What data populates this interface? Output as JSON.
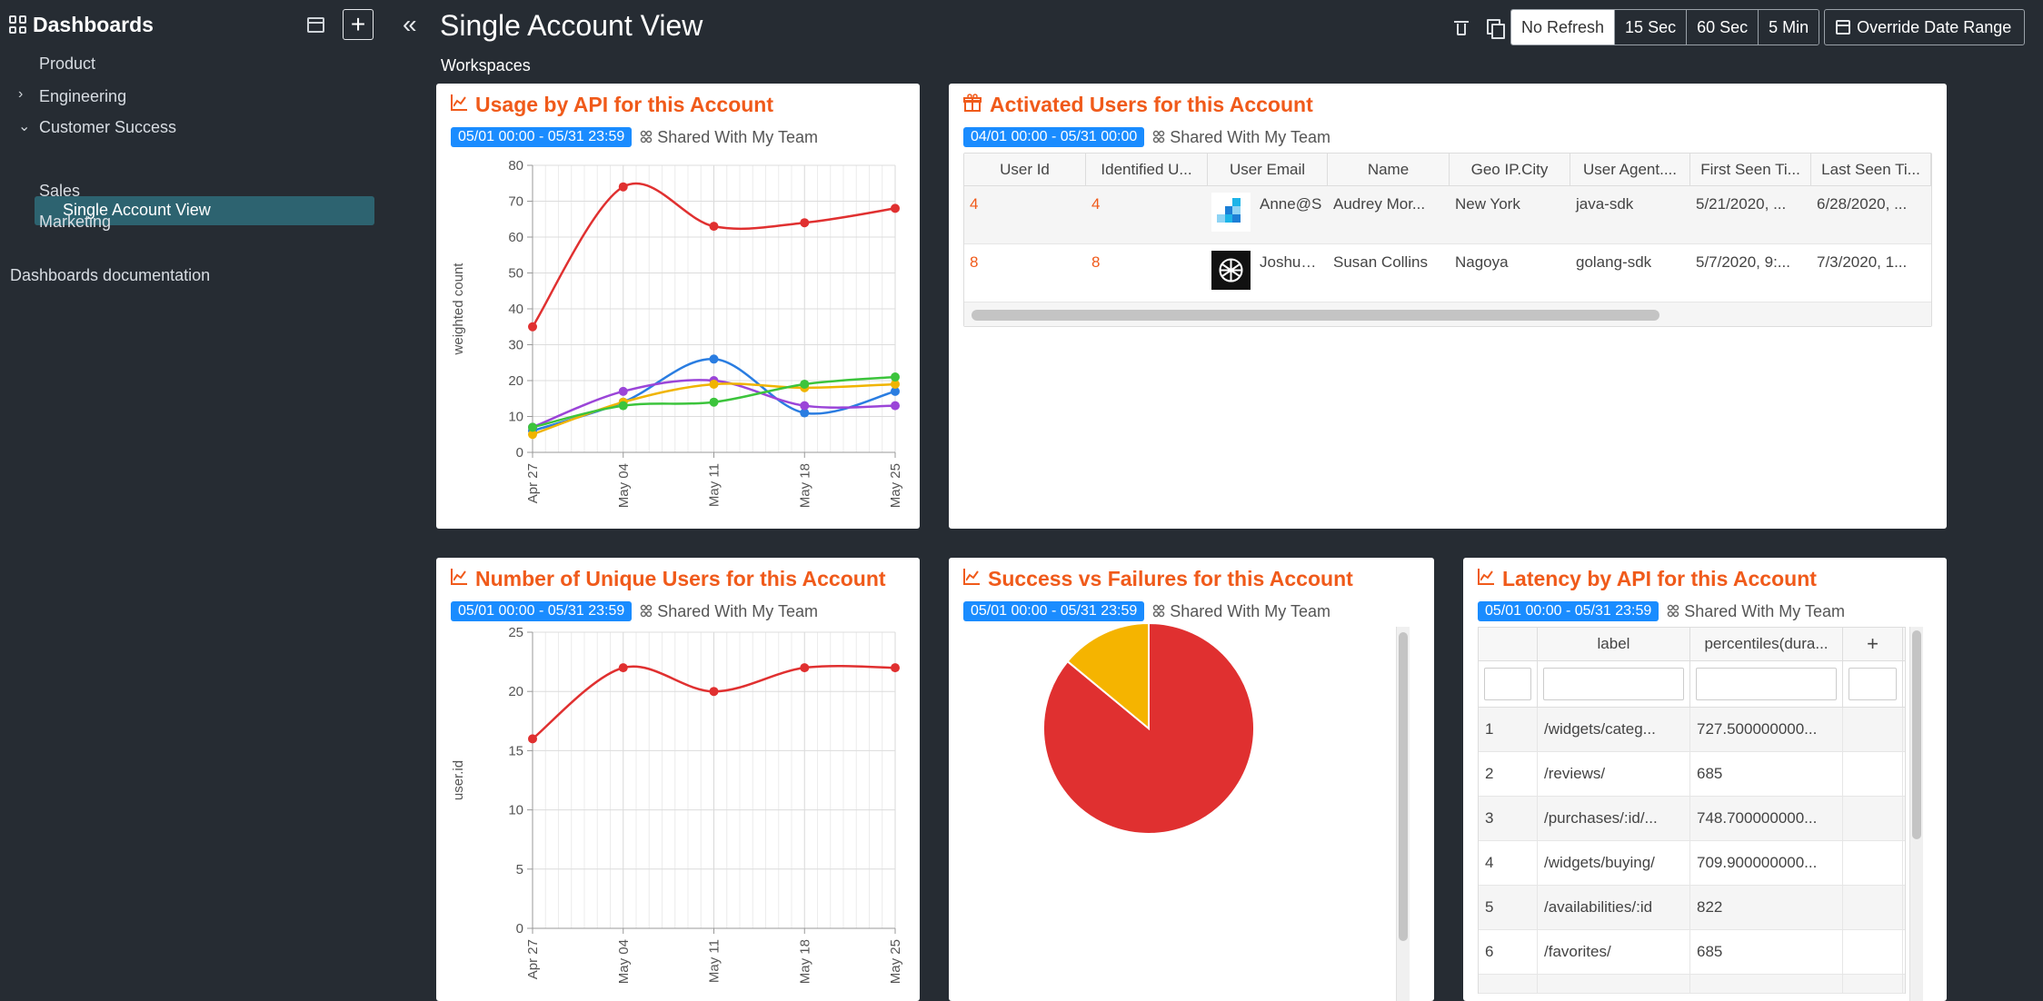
{
  "sidebar": {
    "title": "Dashboards",
    "items": [
      {
        "label": "Product"
      },
      {
        "label": "Engineering"
      },
      {
        "label": "Customer Success"
      },
      {
        "label": "Single Account View"
      },
      {
        "label": "Sales"
      },
      {
        "label": "Marketing"
      }
    ],
    "docs_link": "Dashboards documentation"
  },
  "header": {
    "title": "Single Account View",
    "workspaces": "Workspaces",
    "refresh_options": [
      "No Refresh",
      "15 Sec",
      "60 Sec",
      "5 Min"
    ],
    "selected_refresh": "No Refresh",
    "override_label": "Override Date Range"
  },
  "panels": {
    "usage": {
      "title": "Usage by API for this Account",
      "date_range": "05/01 00:00 - 05/31 23:59",
      "share": "Shared With My Team"
    },
    "activated": {
      "title": "Activated Users for this Account",
      "date_range": "04/01 00:00 - 05/31 00:00",
      "share": "Shared With My Team",
      "columns": [
        "User Id",
        "Identified U...",
        "User Email",
        "Name",
        "Geo IP.City",
        "User Agent....",
        "First Seen Ti...",
        "Last Seen Ti..."
      ],
      "rows": [
        {
          "user_id": "4",
          "identified": "4",
          "email": "Anne@S",
          "name": "Audrey Mor...",
          "city": "New York",
          "agent": "java-sdk",
          "first_seen": "5/21/2020, ...",
          "last_seen": "6/28/2020, ..."
        },
        {
          "user_id": "8",
          "identified": "8",
          "email": "Joshua@",
          "name": "Susan Collins",
          "city": "Nagoya",
          "agent": "golang-sdk",
          "first_seen": "5/7/2020, 9:...",
          "last_seen": "7/3/2020, 1..."
        }
      ]
    },
    "unique": {
      "title": "Number of Unique Users for this Account",
      "date_range": "05/01 00:00 - 05/31 23:59",
      "share": "Shared With My Team"
    },
    "success": {
      "title": "Success vs Failures for this Account",
      "date_range": "05/01 00:00 - 05/31 23:59",
      "share": "Shared With My Team"
    },
    "latency": {
      "title": "Latency by API for this Account",
      "date_range": "05/01 00:00 - 05/31 23:59",
      "share": "Shared With My Team",
      "columns": [
        "",
        "label",
        "percentiles(dura...",
        "+"
      ],
      "rows": [
        {
          "n": "1",
          "label": "/widgets/categ...",
          "value": "727.500000000..."
        },
        {
          "n": "2",
          "label": "/reviews/",
          "value": "685"
        },
        {
          "n": "3",
          "label": "/purchases/:id/...",
          "value": "748.700000000..."
        },
        {
          "n": "4",
          "label": "/widgets/buying/",
          "value": "709.900000000..."
        },
        {
          "n": "5",
          "label": "/availabilities/:id",
          "value": "822"
        },
        {
          "n": "6",
          "label": "/favorites/",
          "value": "685"
        }
      ]
    }
  },
  "chart_data": [
    {
      "type": "line",
      "x": [
        "Apr 27",
        "May 04",
        "May 11",
        "May 18",
        "May 25"
      ],
      "ylabel": "weighted count",
      "ylim": [
        0,
        80
      ],
      "yticks": [
        0,
        10,
        20,
        30,
        40,
        50,
        60,
        70,
        80
      ],
      "grid": true,
      "series": [
        {
          "color": "#e03030",
          "values": [
            35,
            74,
            63,
            64,
            68
          ]
        },
        {
          "color": "#2a7de1",
          "values": [
            6,
            14,
            26,
            11,
            17
          ]
        },
        {
          "color": "#9b45d8",
          "values": [
            7,
            17,
            20,
            13,
            13
          ]
        },
        {
          "color": "#f0b400",
          "values": [
            5,
            14,
            19,
            18,
            19
          ]
        },
        {
          "color": "#3cc43c",
          "values": [
            7,
            13,
            14,
            19,
            21
          ]
        }
      ]
    },
    {
      "type": "line",
      "x": [
        "Apr 27",
        "May 04",
        "May 11",
        "May 18",
        "May 25"
      ],
      "ylabel": "user.id",
      "ylim": [
        0,
        25
      ],
      "yticks": [
        0,
        5,
        10,
        15,
        20,
        25
      ],
      "grid": true,
      "series": [
        {
          "color": "#e03030",
          "values": [
            16,
            22,
            20,
            22,
            22
          ]
        }
      ]
    },
    {
      "type": "pie",
      "slices": [
        {
          "color": "#e03030",
          "value": 86
        },
        {
          "color": "#f5b400",
          "value": 14
        }
      ]
    }
  ]
}
